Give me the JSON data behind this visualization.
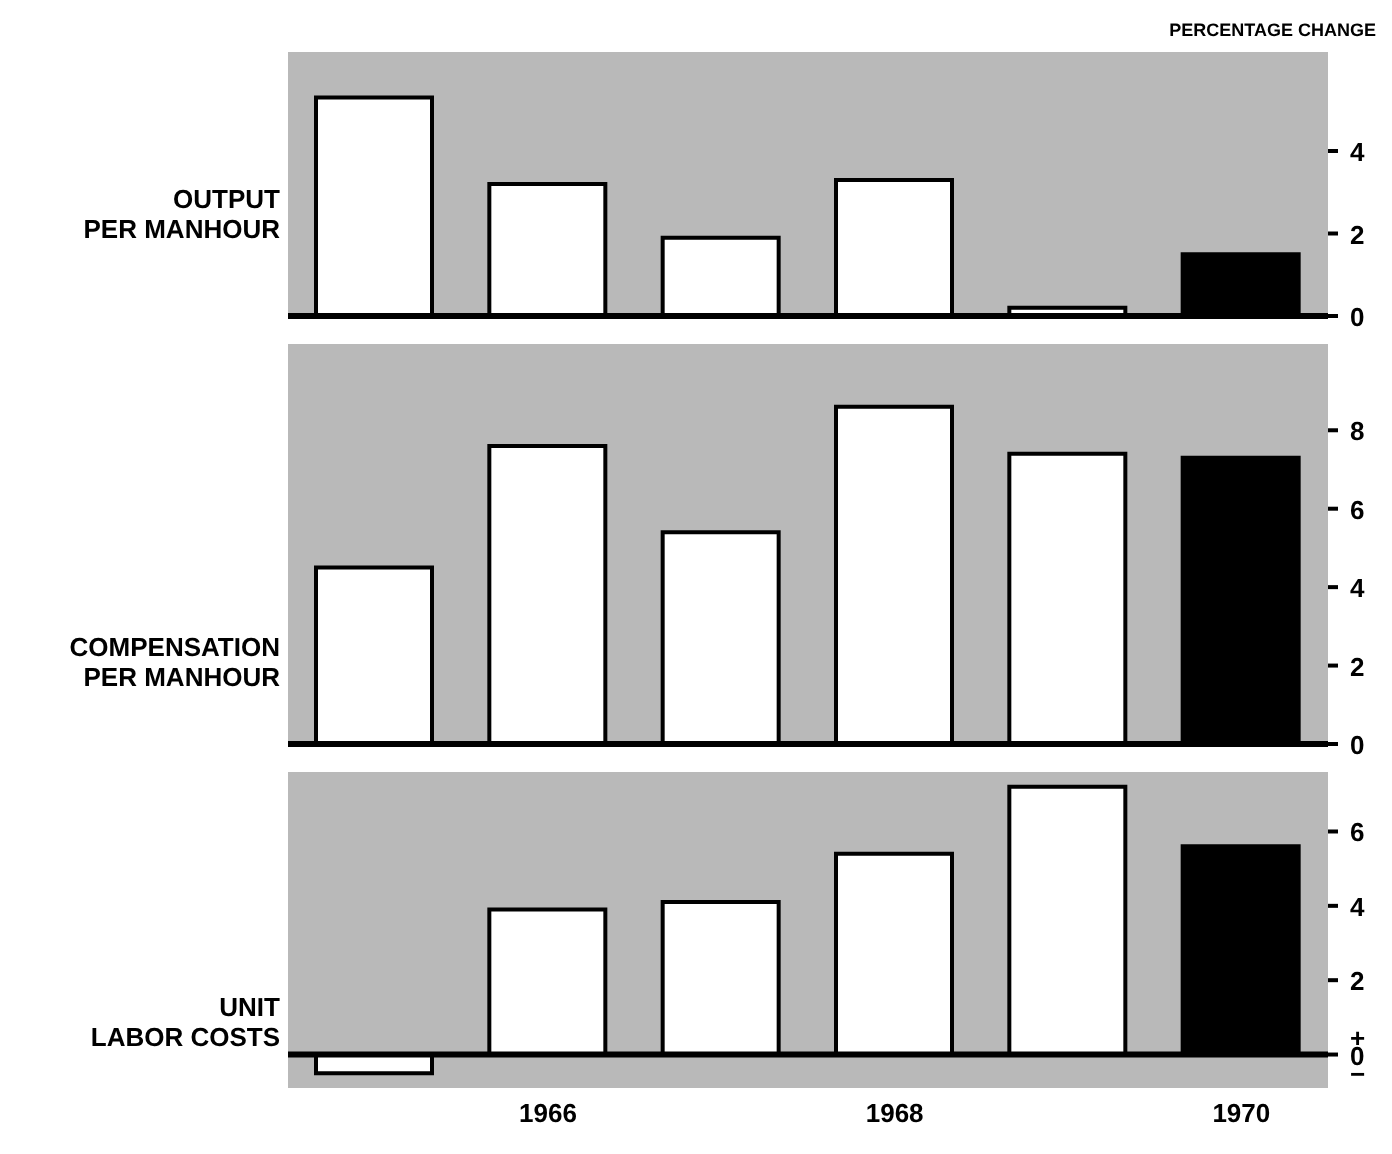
{
  "chart_data": [
    {
      "type": "bar",
      "ylabel": "OUTPUT\nPER MANHOUR",
      "annotations": [
        "PERCENTAGE CHANGE"
      ],
      "categories": [
        null,
        "1966",
        null,
        "1968",
        null,
        "1970"
      ],
      "values": [
        5.3,
        3.2,
        1.9,
        3.3,
        0.2,
        1.5
      ],
      "colors": [
        "#ffffff",
        "#ffffff",
        "#ffffff",
        "#ffffff",
        "#ffffff",
        "#000000"
      ],
      "ylim": [
        0,
        6.4
      ],
      "yticks": [
        0,
        2,
        4
      ],
      "tick_labels": "y"
    },
    {
      "type": "bar",
      "ylabel": "COMPENSATION\nPER MANHOUR",
      "categories": [
        null,
        "1966",
        null,
        "1968",
        null,
        "1970"
      ],
      "values": [
        4.5,
        7.6,
        5.4,
        8.6,
        7.4,
        7.3
      ],
      "colors": [
        "#ffffff",
        "#ffffff",
        "#ffffff",
        "#ffffff",
        "#ffffff",
        "#000000"
      ],
      "ylim": [
        0,
        10.2
      ],
      "yticks": [
        0,
        2,
        4,
        6,
        8
      ],
      "tick_labels": "y"
    },
    {
      "type": "bar",
      "ylabel": "UNIT\nLABOR COSTS",
      "categories": [
        null,
        "1966",
        null,
        "1968",
        null,
        "1970"
      ],
      "values": [
        -0.5,
        3.9,
        4.1,
        5.4,
        7.2,
        5.6
      ],
      "colors": [
        "#ffffff",
        "#ffffff",
        "#ffffff",
        "#ffffff",
        "#ffffff",
        "#000000"
      ],
      "ylim": [
        -0.9,
        7.6
      ],
      "yticks": [
        {
          "value": 0,
          "label": "+\n0\n−"
        },
        2,
        4,
        6
      ]
    }
  ]
}
